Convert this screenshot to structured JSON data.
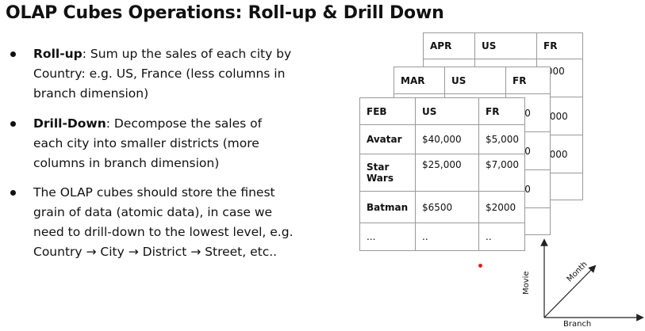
{
  "title": "OLAP Cubes Operations: Roll-up & Drill Down",
  "bullets": [
    {
      "bold": "Roll-up",
      "text": ": Sum up the sales of each city by Country: e.g. US, France (less columns in branch dimension)"
    },
    {
      "bold": "Drill-Down",
      "text": ": Decompose the sales of each city into smaller districts (more columns in branch dimension)"
    },
    {
      "bold": "",
      "text": "The OLAP cubes should store the finest grain of data (atomic data), in case we need to drill-down to the lowest level, e.g. Country → City → District → Street, etc.."
    }
  ],
  "apr": {
    "month": "APR",
    "c1": "US",
    "c2": "FR",
    "right_partials": [
      ",000",
      "/,000",
      "2000"
    ]
  },
  "mar": {
    "month": "MAR",
    "c1": "US",
    "c2": "FR",
    "right_partials": ",000,000,000,000",
    "partial_rows": [
      "000",
      "000",
      "000",
      "000"
    ]
  },
  "feb": {
    "month": "FEB",
    "col_us": "US",
    "col_fr": "FR",
    "rows": [
      {
        "movie": "Avatar",
        "us": "$40,000",
        "fr": "$5,000"
      },
      {
        "movie": "Star Wars",
        "us": "$25,000",
        "fr": "$7,000"
      },
      {
        "movie": "Batman",
        "us": "$6500",
        "fr": "$2000"
      },
      {
        "movie": "...",
        "us": "..",
        "fr": ".."
      }
    ]
  },
  "axes": {
    "movie": "Movie",
    "month": "Month",
    "branch": "Branch"
  },
  "colors": {
    "grid": "#999999",
    "marker": "#e02020"
  }
}
